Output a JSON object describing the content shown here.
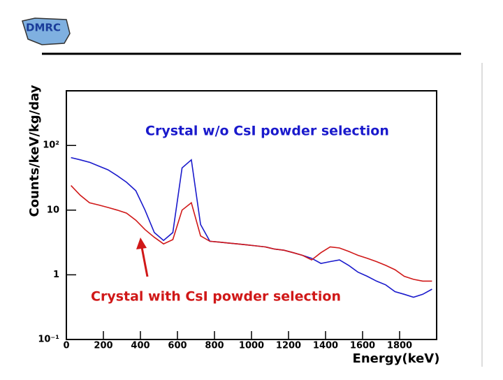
{
  "logo": "DMRC",
  "chart_data": {
    "type": "line",
    "y_label": "Counts/keV/kg/day",
    "x_label": "Energy(keV)",
    "annotations": [
      {
        "text": "Crystal w/o CsI powder selection",
        "color": "#1a1acc"
      },
      {
        "text": "Crystal with CsI powder selection",
        "color": "#d01818"
      }
    ],
    "x": [
      25,
      75,
      125,
      175,
      225,
      275,
      325,
      375,
      425,
      475,
      525,
      575,
      625,
      675,
      725,
      775,
      825,
      875,
      925,
      975,
      1025,
      1075,
      1125,
      1175,
      1225,
      1275,
      1325,
      1375,
      1425,
      1475,
      1525,
      1575,
      1625,
      1675,
      1725,
      1775,
      1825,
      1875,
      1925,
      1975
    ],
    "series": [
      {
        "name": "Crystal w/o CsI powder selection",
        "color": "#1a1acc",
        "values": [
          65,
          60,
          55,
          48,
          42,
          34,
          27,
          20,
          10,
          4.5,
          3.4,
          4.5,
          45,
          60,
          6,
          3.3,
          3.2,
          3.1,
          3.0,
          2.9,
          2.8,
          2.7,
          2.5,
          2.4,
          2.2,
          2.0,
          1.8,
          1.5,
          1.6,
          1.7,
          1.4,
          1.1,
          0.95,
          0.8,
          0.7,
          0.55,
          0.5,
          0.45,
          0.5,
          0.6
        ]
      },
      {
        "name": "Crystal with CsI powder selection",
        "color": "#d01818",
        "values": [
          24,
          17,
          13,
          12,
          11,
          10,
          9,
          7,
          5,
          3.8,
          3.0,
          3.5,
          10,
          13,
          4,
          3.3,
          3.2,
          3.1,
          3.0,
          2.9,
          2.8,
          2.7,
          2.5,
          2.4,
          2.2,
          2.0,
          1.7,
          2.2,
          2.7,
          2.6,
          2.3,
          2.0,
          1.8,
          1.6,
          1.4,
          1.2,
          0.95,
          0.85,
          0.8,
          0.8
        ]
      }
    ],
    "xlim": [
      0,
      2000
    ],
    "xticks": [
      0,
      200,
      400,
      600,
      800,
      1000,
      1200,
      1400,
      1600,
      1800
    ],
    "ylim": [
      0.1,
      700
    ],
    "yticks": [
      {
        "value": 0.1,
        "label": "10⁻¹"
      },
      1,
      10,
      {
        "value": 100,
        "label": "10²"
      }
    ],
    "log_y": true,
    "grid": false
  }
}
